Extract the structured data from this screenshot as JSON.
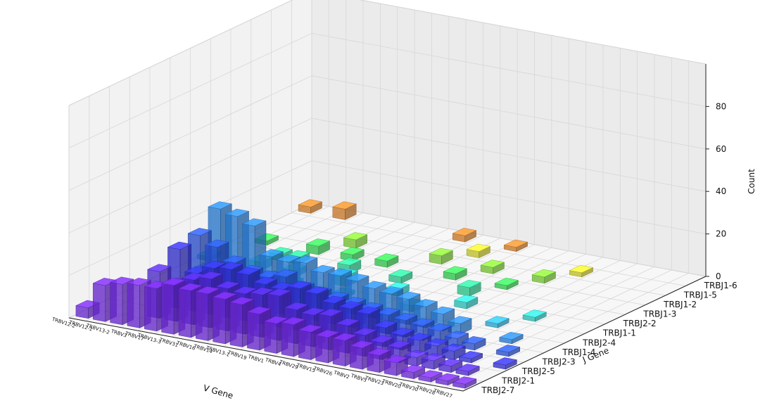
{
  "chart_data": {
    "type": "bar3d",
    "xlabel": "V Gene",
    "ylabel": "J Gene",
    "zlabel": "Count",
    "zlim": [
      0,
      100
    ],
    "z_ticks": [
      0,
      20,
      40,
      60,
      80
    ],
    "x_categories": [
      "TRBV12-2",
      "TRBV12-1",
      "TRBV13-2",
      "TRBV3",
      "TRBV17",
      "TRBV13-3",
      "TRBV31",
      "TRBV16",
      "TRBV14",
      "TRBV13-1",
      "TRBV19",
      "TRBV1",
      "TRBV4",
      "TRBV29",
      "TRBV15",
      "TRBV26",
      "TRBV2",
      "TRBV5",
      "TRBV23",
      "TRBV20",
      "TRBV30",
      "TRBV28",
      "TRBV27"
    ],
    "y_categories": [
      "TRBJ2-7",
      "TRBJ2-1",
      "TRBJ2-5",
      "TRBJ2-3",
      "TRBJ1-4",
      "TRBJ2-4",
      "TRBJ1-1",
      "TRBJ2-2",
      "TRBJ1-3",
      "TRBJ1-2",
      "TRBJ1-5",
      "TRBJ1-6"
    ],
    "bar_colors": [
      "#7b2ff7",
      "#5a30f0",
      "#3a37f0",
      "#2f5cf2",
      "#2f8ef5",
      "#2fc0f2",
      "#2fe0d8",
      "#2fe8a0",
      "#3ae85a",
      "#8ae83a",
      "#e8e82f",
      "#f0902f"
    ],
    "bars": [
      [
        0,
        0,
        5
      ],
      [
        0,
        6,
        2
      ],
      [
        0,
        11,
        3
      ],
      [
        1,
        0,
        17
      ],
      [
        1,
        5,
        2
      ],
      [
        1,
        8,
        2
      ],
      [
        2,
        0,
        19
      ],
      [
        2,
        3,
        4
      ],
      [
        2,
        4,
        2
      ],
      [
        2,
        11,
        5
      ],
      [
        3,
        0,
        20
      ],
      [
        3,
        1,
        22
      ],
      [
        3,
        2,
        28
      ],
      [
        3,
        3,
        30
      ],
      [
        3,
        4,
        38
      ],
      [
        3,
        6,
        4
      ],
      [
        3,
        7,
        3
      ],
      [
        4,
        0,
        20
      ],
      [
        4,
        1,
        17
      ],
      [
        4,
        2,
        18
      ],
      [
        4,
        3,
        26
      ],
      [
        4,
        4,
        36
      ],
      [
        4,
        5,
        3
      ],
      [
        4,
        7,
        3
      ],
      [
        4,
        8,
        4
      ],
      [
        5,
        0,
        23
      ],
      [
        5,
        1,
        21
      ],
      [
        5,
        2,
        22
      ],
      [
        5,
        3,
        20
      ],
      [
        5,
        4,
        33
      ],
      [
        5,
        5,
        4
      ],
      [
        5,
        6,
        3
      ],
      [
        5,
        9,
        4
      ],
      [
        6,
        0,
        22
      ],
      [
        6,
        1,
        23
      ],
      [
        6,
        2,
        23
      ],
      [
        6,
        3,
        17
      ],
      [
        6,
        4,
        20
      ],
      [
        6,
        5,
        3
      ],
      [
        6,
        8,
        3
      ],
      [
        7,
        0,
        22
      ],
      [
        7,
        1,
        20
      ],
      [
        7,
        2,
        22
      ],
      [
        7,
        3,
        16
      ],
      [
        7,
        4,
        19
      ],
      [
        7,
        7,
        4
      ],
      [
        8,
        0,
        21
      ],
      [
        8,
        1,
        19
      ],
      [
        8,
        2,
        19
      ],
      [
        8,
        3,
        18
      ],
      [
        8,
        4,
        20
      ],
      [
        8,
        6,
        5
      ],
      [
        8,
        8,
        3
      ],
      [
        9,
        0,
        20
      ],
      [
        9,
        1,
        20
      ],
      [
        9,
        2,
        18
      ],
      [
        9,
        3,
        14
      ],
      [
        9,
        4,
        17
      ],
      [
        9,
        5,
        2
      ],
      [
        9,
        11,
        3
      ],
      [
        10,
        0,
        17
      ],
      [
        10,
        1,
        21
      ],
      [
        10,
        2,
        20
      ],
      [
        10,
        3,
        13
      ],
      [
        10,
        4,
        17
      ],
      [
        10,
        7,
        3
      ],
      [
        10,
        9,
        4
      ],
      [
        11,
        0,
        14
      ],
      [
        11,
        1,
        16
      ],
      [
        11,
        2,
        19
      ],
      [
        11,
        3,
        12
      ],
      [
        11,
        4,
        16
      ],
      [
        11,
        6,
        3
      ],
      [
        11,
        10,
        3
      ],
      [
        12,
        0,
        15
      ],
      [
        12,
        1,
        15
      ],
      [
        12,
        2,
        16
      ],
      [
        12,
        3,
        11
      ],
      [
        12,
        4,
        14
      ],
      [
        12,
        8,
        3
      ],
      [
        12,
        11,
        2
      ],
      [
        13,
        0,
        13
      ],
      [
        13,
        1,
        16
      ],
      [
        13,
        2,
        15
      ],
      [
        13,
        3,
        10
      ],
      [
        13,
        4,
        13
      ],
      [
        13,
        5,
        3
      ],
      [
        13,
        9,
        3
      ],
      [
        14,
        0,
        12
      ],
      [
        14,
        1,
        13
      ],
      [
        14,
        2,
        14
      ],
      [
        14,
        3,
        9
      ],
      [
        14,
        4,
        12
      ],
      [
        14,
        7,
        4
      ],
      [
        15,
        0,
        12
      ],
      [
        15,
        1,
        10
      ],
      [
        15,
        2,
        9
      ],
      [
        15,
        3,
        8
      ],
      [
        15,
        4,
        10
      ],
      [
        15,
        6,
        3
      ],
      [
        15,
        8,
        2
      ],
      [
        16,
        0,
        10
      ],
      [
        16,
        1,
        8
      ],
      [
        16,
        2,
        7
      ],
      [
        16,
        3,
        7
      ],
      [
        16,
        4,
        8
      ],
      [
        16,
        9,
        3
      ],
      [
        17,
        0,
        8
      ],
      [
        17,
        1,
        7
      ],
      [
        17,
        2,
        6
      ],
      [
        17,
        3,
        6
      ],
      [
        17,
        4,
        5
      ],
      [
        17,
        10,
        2
      ],
      [
        18,
        0,
        6
      ],
      [
        18,
        1,
        4
      ],
      [
        18,
        2,
        5
      ],
      [
        18,
        3,
        4
      ],
      [
        18,
        5,
        2
      ],
      [
        19,
        0,
        3
      ],
      [
        19,
        1,
        4
      ],
      [
        19,
        2,
        4
      ],
      [
        19,
        3,
        3
      ],
      [
        19,
        6,
        2
      ],
      [
        20,
        0,
        2
      ],
      [
        20,
        1,
        3
      ],
      [
        20,
        2,
        2
      ],
      [
        20,
        4,
        2
      ],
      [
        21,
        0,
        2
      ],
      [
        21,
        1,
        2
      ],
      [
        21,
        3,
        2
      ],
      [
        22,
        0,
        2
      ],
      [
        22,
        2,
        2
      ]
    ]
  }
}
